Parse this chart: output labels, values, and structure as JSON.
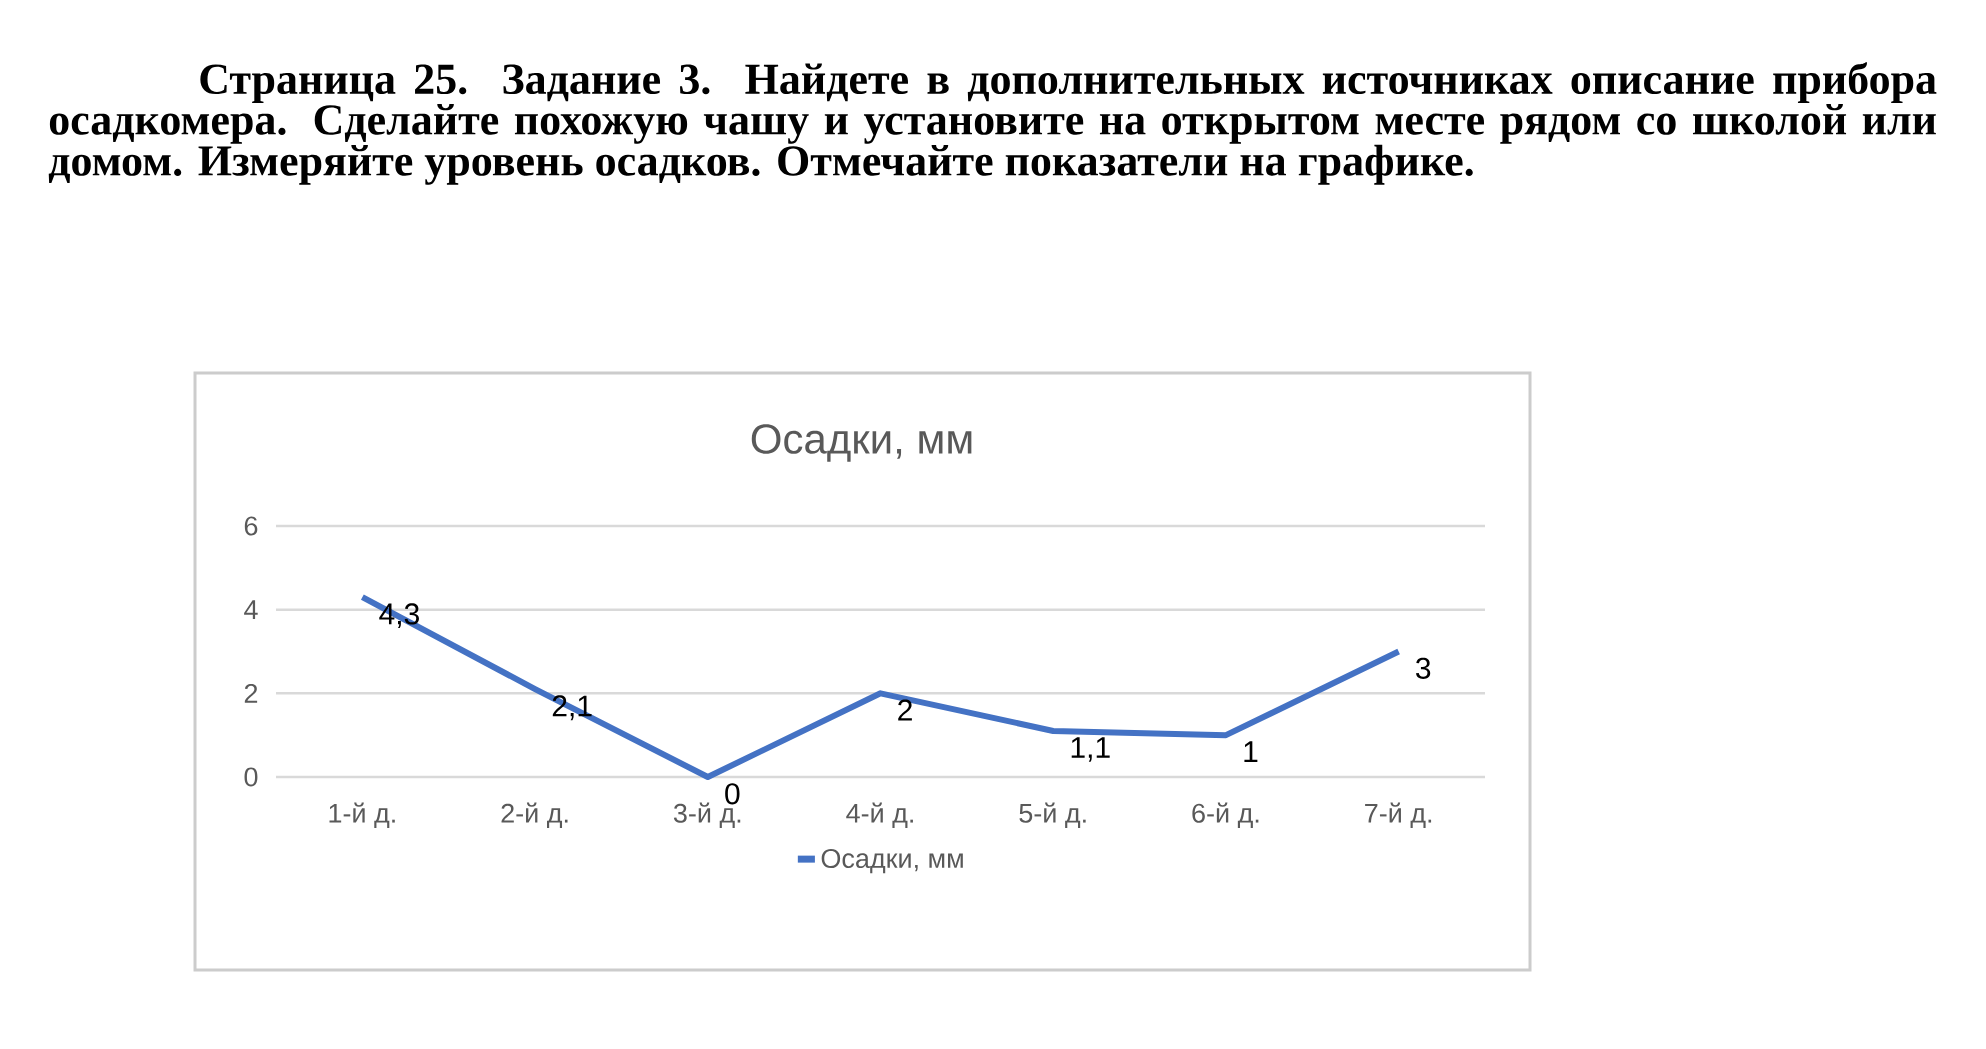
{
  "chart_data": {
    "type": "line",
    "title": "Осадки, мм",
    "annotations": [
      "Страница 25. Задание 3. Найдете в дополнительных источниках описание прибора осадкомера. Сделайте похожую чашу и установите на открытом месте рядом со школой или домом. Измеряйте уровень осадков. Отмечайте показатели на графике."
    ],
    "categories": [
      "1-й д.",
      "2-й д.",
      "3-й д.",
      "4-й д.",
      "5-й д.",
      "6-й д.",
      "7-й д."
    ],
    "series": [
      {
        "name": "Осадки, мм",
        "color": "#4472c4",
        "values": [
          4.3,
          2.1,
          0,
          2,
          1.1,
          1,
          3
        ],
        "value_labels": [
          "4,3",
          "2,1",
          "0",
          "2",
          "1,1",
          "1",
          "3"
        ]
      }
    ],
    "ylim": [
      0,
      6
    ],
    "yticks": [
      0,
      2,
      4,
      6
    ],
    "grid": "y",
    "legend": "bottom"
  }
}
